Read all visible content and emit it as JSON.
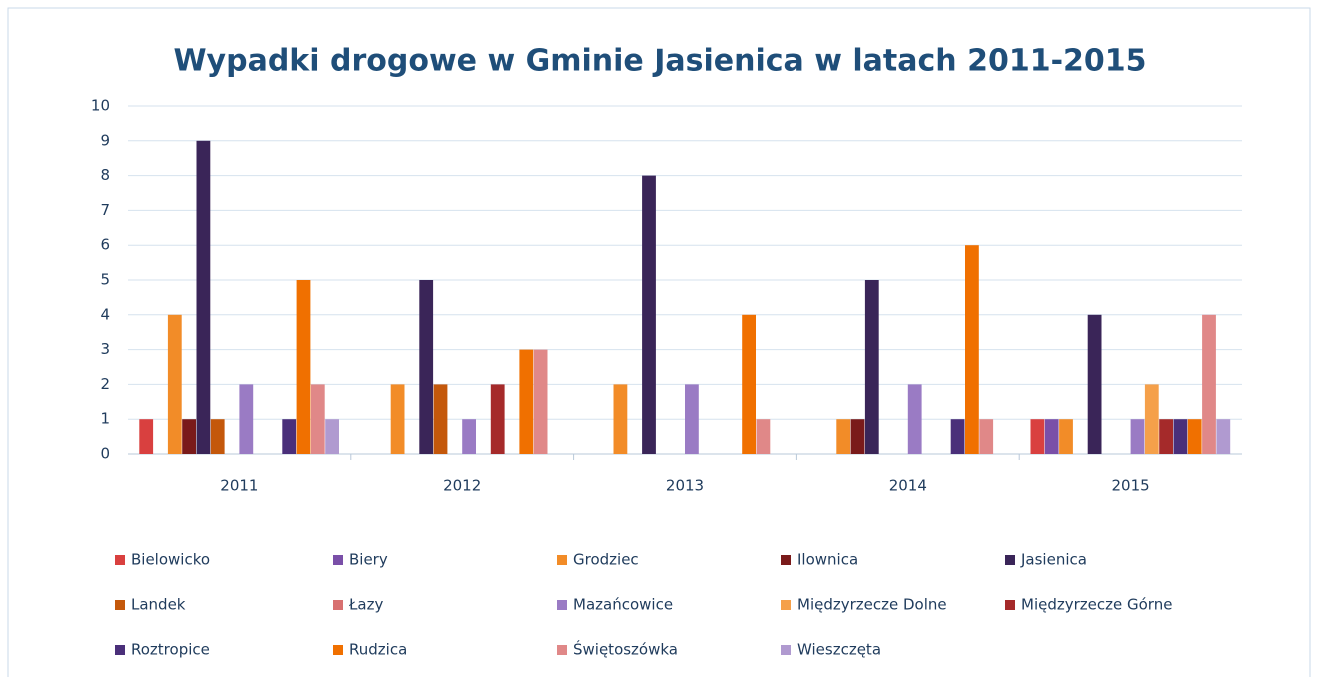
{
  "chart_data": {
    "type": "bar",
    "title": "Wypadki drogowe w Gminie Jasienica w latach 2011-2015",
    "categories": [
      "2011",
      "2012",
      "2013",
      "2014",
      "2015"
    ],
    "ylim": [
      0,
      10
    ],
    "yticks": [
      0,
      1,
      2,
      3,
      4,
      5,
      6,
      7,
      8,
      9,
      10
    ],
    "grid": true,
    "series": [
      {
        "name": "Bielowicko",
        "color": "#d9403f",
        "values": [
          1,
          0,
          0,
          0,
          1
        ]
      },
      {
        "name": "Biery",
        "color": "#7a4fa8",
        "values": [
          0,
          0,
          0,
          0,
          1
        ]
      },
      {
        "name": "Grodziec",
        "color": "#f28c28",
        "values": [
          4,
          2,
          2,
          1,
          1
        ]
      },
      {
        "name": "Ilownica",
        "color": "#7a1a1a",
        "values": [
          1,
          0,
          0,
          1,
          0
        ]
      },
      {
        "name": "Jasienica",
        "color": "#3a2558",
        "values": [
          9,
          5,
          8,
          5,
          4
        ]
      },
      {
        "name": "Landek",
        "color": "#c4580b",
        "values": [
          1,
          2,
          0,
          0,
          0
        ]
      },
      {
        "name": "Łazy",
        "color": "#d87070",
        "values": [
          0,
          0,
          0,
          0,
          0
        ]
      },
      {
        "name": "Mazańcowice",
        "color": "#9a7bc4",
        "values": [
          2,
          1,
          2,
          2,
          1
        ]
      },
      {
        "name": "Międzyrzecze Dolne",
        "color": "#f5a04a",
        "values": [
          0,
          0,
          0,
          0,
          2
        ]
      },
      {
        "name": "Międzyrzecze Górne",
        "color": "#a52a2a",
        "values": [
          0,
          2,
          0,
          0,
          1
        ]
      },
      {
        "name": "Roztropice",
        "color": "#4a2f7a",
        "values": [
          1,
          0,
          0,
          1,
          1
        ]
      },
      {
        "name": "Rudzica",
        "color": "#f07000",
        "values": [
          5,
          3,
          4,
          6,
          1
        ]
      },
      {
        "name": "Świętoszówka",
        "color": "#e08888",
        "values": [
          2,
          3,
          1,
          1,
          4
        ]
      },
      {
        "name": "Wieszczęta",
        "color": "#b09ad0",
        "values": [
          1,
          0,
          0,
          0,
          1
        ]
      }
    ]
  }
}
